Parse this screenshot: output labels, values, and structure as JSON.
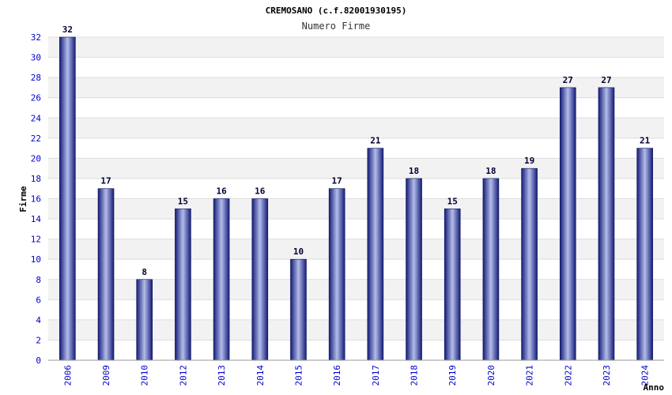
{
  "chart_data": {
    "type": "bar",
    "title": "CREMOSANO (c.f.82001930195)",
    "subtitle": "Numero Firme",
    "xlabel": "Anno",
    "ylabel": "Firme",
    "categories": [
      "2006",
      "2009",
      "2010",
      "2012",
      "2013",
      "2014",
      "2015",
      "2016",
      "2017",
      "2018",
      "2019",
      "2020",
      "2021",
      "2022",
      "2023",
      "2024"
    ],
    "values": [
      32,
      17,
      8,
      15,
      16,
      16,
      10,
      17,
      21,
      18,
      15,
      18,
      19,
      27,
      27,
      21
    ],
    "ylim": [
      0,
      32
    ],
    "yticks": [
      0,
      2,
      4,
      6,
      8,
      10,
      12,
      14,
      16,
      18,
      20,
      22,
      24,
      26,
      28,
      30,
      32
    ],
    "grid": true,
    "data_labels": true,
    "colors": {
      "bar_dark": "#1a237e",
      "bar_light": "#b0b8e8",
      "band": "#f2f2f2",
      "grid": "#dddddd",
      "tick_text": "#0000cc"
    }
  }
}
